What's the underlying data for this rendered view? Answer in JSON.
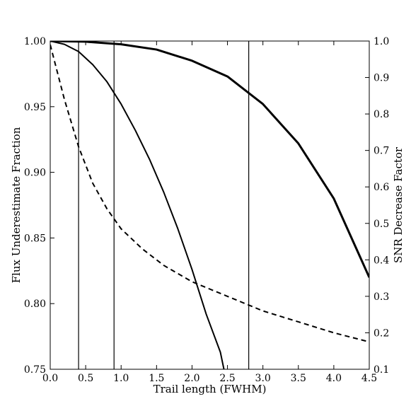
{
  "chart_data": {
    "type": "line",
    "xlabel": "Trail length (FWHM)",
    "ylabel_left": "Flux Underestimate Fraction",
    "ylabel_right": "SNR Decrease Factor",
    "xlim": [
      0.0,
      4.5
    ],
    "ylim_left": [
      0.75,
      1.0
    ],
    "ylim_right": [
      0.1,
      1.0
    ],
    "x_ticks": [
      "0.0",
      "0.5",
      "1.0",
      "1.5",
      "2.0",
      "2.5",
      "3.0",
      "3.5",
      "4.0",
      "4.5"
    ],
    "y_left_ticks": [
      "0.75",
      "0.80",
      "0.85",
      "0.90",
      "0.95",
      "1.00"
    ],
    "y_right_ticks": [
      "0.1",
      "0.2",
      "0.3",
      "0.4",
      "0.5",
      "0.6",
      "0.7",
      "0.8",
      "0.9",
      "1.0"
    ],
    "grid": false,
    "legend": "none",
    "vertical_lines": [
      0.4,
      0.9,
      2.8
    ],
    "series": [
      {
        "axis": "left",
        "style": "solid-thick",
        "x": [
          0.0,
          0.5,
          1.0,
          1.5,
          2.0,
          2.5,
          3.0,
          3.5,
          4.0,
          4.5
        ],
        "y": [
          1.0,
          0.9995,
          0.9975,
          0.9935,
          0.985,
          0.973,
          0.952,
          0.922,
          0.88,
          0.82
        ]
      },
      {
        "axis": "left",
        "style": "solid",
        "x": [
          0.0,
          0.2,
          0.4,
          0.6,
          0.8,
          1.0,
          1.2,
          1.4,
          1.6,
          1.8,
          2.0,
          2.2,
          2.4,
          2.45
        ],
        "y": [
          1.0,
          0.9975,
          0.992,
          0.982,
          0.969,
          0.952,
          0.932,
          0.91,
          0.885,
          0.857,
          0.826,
          0.792,
          0.763,
          0.75
        ]
      },
      {
        "axis": "right",
        "style": "dashed",
        "x": [
          0.0,
          0.2,
          0.4,
          0.6,
          0.8,
          1.0,
          1.3,
          1.6,
          2.0,
          2.5,
          3.0,
          3.5,
          4.0,
          4.5
        ],
        "y": [
          0.99,
          0.84,
          0.71,
          0.61,
          0.54,
          0.485,
          0.43,
          0.385,
          0.34,
          0.3,
          0.26,
          0.23,
          0.2,
          0.175
        ]
      }
    ]
  }
}
